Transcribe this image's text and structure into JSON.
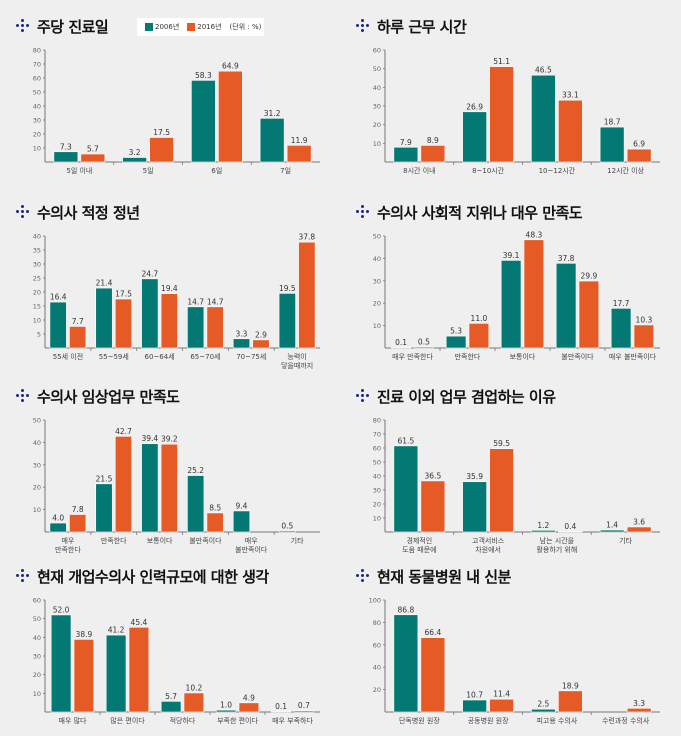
{
  "legend": {
    "series": [
      "2006년",
      "2016년"
    ],
    "unit": "(단위 : %)"
  },
  "colors": {
    "series_2006": "#047872",
    "series_2016": "#e65a25",
    "background": "#efefef",
    "icon": "#1b2a8a",
    "axis": "#888888"
  },
  "chart_data": [
    {
      "type": "bar",
      "title": "주당 진료일",
      "categories": [
        [
          "5일 이내"
        ],
        [
          "5일"
        ],
        [
          "6일"
        ],
        [
          "7일"
        ]
      ],
      "series": [
        {
          "name": "2006년",
          "values": [
            7.3,
            3.2,
            58.3,
            31.2
          ]
        },
        {
          "name": "2016년",
          "values": [
            5.7,
            17.5,
            64.9,
            11.9
          ]
        }
      ],
      "yticks": [
        10,
        20,
        30,
        40,
        50,
        60,
        70,
        80
      ],
      "ylim": [
        0,
        80
      ],
      "xlabel": "",
      "ylabel": "",
      "legend": "top"
    },
    {
      "type": "bar",
      "title": "하루 근무 시간",
      "categories": [
        [
          "8시간 이내"
        ],
        [
          "8~10시간"
        ],
        [
          "10~12시간"
        ],
        [
          "12시간 이상"
        ]
      ],
      "series": [
        {
          "name": "2006년",
          "values": [
            7.9,
            26.9,
            46.5,
            18.7
          ]
        },
        {
          "name": "2016년",
          "values": [
            8.9,
            51.1,
            33.1,
            6.9
          ]
        }
      ],
      "yticks": [
        10,
        20,
        30,
        40,
        50,
        60
      ],
      "ylim": [
        0,
        60
      ],
      "xlabel": "",
      "ylabel": ""
    },
    {
      "type": "bar",
      "title": "수의사 적정 정년",
      "categories": [
        [
          "55세 이전"
        ],
        [
          "55~59세"
        ],
        [
          "60~64세"
        ],
        [
          "65~70세"
        ],
        [
          "70~75세"
        ],
        [
          "능력이",
          "닿을때까지"
        ]
      ],
      "series": [
        {
          "name": "2006년",
          "values": [
            16.4,
            21.4,
            24.7,
            14.7,
            3.3,
            19.5
          ]
        },
        {
          "name": "2016년",
          "values": [
            7.7,
            17.5,
            19.4,
            14.7,
            2.9,
            37.8
          ]
        }
      ],
      "yticks": [
        5,
        10,
        15,
        20,
        25,
        30,
        35,
        40
      ],
      "ylim": [
        0,
        40
      ],
      "xlabel": "",
      "ylabel": ""
    },
    {
      "type": "bar",
      "title": "수의사 사회적 지위나 대우 만족도",
      "categories": [
        [
          "매우 만족한다"
        ],
        [
          "만족한다"
        ],
        [
          "보통이다"
        ],
        [
          "불만족이다"
        ],
        [
          "매우 불만족이다"
        ]
      ],
      "series": [
        {
          "name": "2006년",
          "values": [
            0.1,
            5.3,
            39.1,
            37.8,
            17.7
          ]
        },
        {
          "name": "2016년",
          "values": [
            0.5,
            11.0,
            48.3,
            29.9,
            10.3
          ]
        }
      ],
      "value_labels": [
        [
          "0.1",
          "5.3",
          "39.1",
          "37.8",
          "17.7"
        ],
        [
          "0.5",
          "11.0",
          "48.3",
          "29.9",
          "10.3"
        ]
      ],
      "yticks": [
        10,
        20,
        30,
        40,
        50
      ],
      "ylim": [
        0,
        50
      ],
      "xlabel": "",
      "ylabel": ""
    },
    {
      "type": "bar",
      "title": "수의사 임상업무 만족도",
      "categories": [
        [
          "매우",
          "만족한다"
        ],
        [
          "만족한다"
        ],
        [
          "보통이다"
        ],
        [
          "불만족이다"
        ],
        [
          "매우",
          "불만족이다"
        ],
        [
          "기타"
        ]
      ],
      "series": [
        {
          "name": "2006년",
          "values": [
            4.0,
            21.5,
            39.4,
            25.2,
            9.4,
            0.5
          ]
        },
        {
          "name": "2016년",
          "values": [
            7.8,
            42.7,
            39.2,
            8.5,
            null,
            null
          ]
        }
      ],
      "value_labels": [
        [
          "4.0",
          "21.5",
          "39.4",
          "25.2",
          "9.4",
          "0.5"
        ],
        [
          "7.8",
          "42.7",
          "39.2",
          "8.5",
          null,
          null
        ]
      ],
      "yticks": [
        10,
        20,
        30,
        40,
        50
      ],
      "ylim": [
        0,
        50
      ],
      "xlabel": "",
      "ylabel": ""
    },
    {
      "type": "bar",
      "title": "진료 이외 업무 겸업하는 이유",
      "categories": [
        [
          "경제적인",
          "도움 때문에"
        ],
        [
          "고객서비스",
          "차원에서"
        ],
        [
          "남는 시간을",
          "활용하기 위해"
        ],
        [
          "기타"
        ]
      ],
      "series": [
        {
          "name": "2006년",
          "values": [
            61.5,
            35.9,
            1.2,
            1.4
          ]
        },
        {
          "name": "2016년",
          "values": [
            36.5,
            59.5,
            0.4,
            3.6
          ]
        }
      ],
      "yticks": [
        10,
        20,
        30,
        40,
        50,
        60,
        70,
        80
      ],
      "ylim": [
        0,
        80
      ],
      "xlabel": "",
      "ylabel": ""
    },
    {
      "type": "bar",
      "title": "현재 개업수의사 인력규모에 대한 생각",
      "categories": [
        [
          "매우 많다"
        ],
        [
          "많은 편이다"
        ],
        [
          "적당하다"
        ],
        [
          "부족한 편이다"
        ],
        [
          "매우 부족하다"
        ]
      ],
      "series": [
        {
          "name": "2006년",
          "values": [
            52.0,
            41.2,
            5.7,
            1.0,
            0.1
          ]
        },
        {
          "name": "2016년",
          "values": [
            38.9,
            45.4,
            10.2,
            4.9,
            0.7
          ]
        }
      ],
      "value_labels": [
        [
          "52.0",
          "41.2",
          "5.7",
          "1.0",
          "0.1"
        ],
        [
          "38.9",
          "45.4",
          "10.2",
          "4.9",
          "0.7"
        ]
      ],
      "yticks": [
        10,
        20,
        30,
        40,
        50,
        60
      ],
      "ylim": [
        0,
        60
      ],
      "xlabel": "",
      "ylabel": ""
    },
    {
      "type": "bar",
      "title": "현재 동물병원 내 신분",
      "categories": [
        [
          "단독병원 원장"
        ],
        [
          "공동병원 원장"
        ],
        [
          "피고용 수의사"
        ],
        [
          "수련과정 수의사"
        ]
      ],
      "series": [
        {
          "name": "2006년",
          "values": [
            86.8,
            10.7,
            2.5,
            null
          ]
        },
        {
          "name": "2016년",
          "values": [
            66.4,
            11.4,
            18.9,
            3.3
          ]
        }
      ],
      "yticks": [
        20,
        40,
        60,
        80,
        100
      ],
      "ylim": [
        0,
        100
      ],
      "xlabel": "",
      "ylabel": ""
    }
  ]
}
